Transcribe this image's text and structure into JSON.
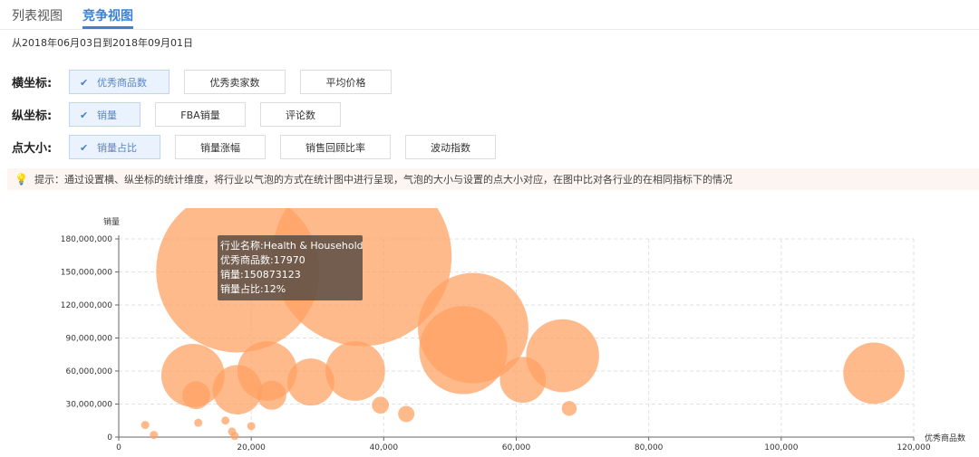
{
  "tabs": [
    {
      "label": "列表视图",
      "active": false
    },
    {
      "label": "竞争视图",
      "active": true
    }
  ],
  "date_range": "从2018年06月03日到2018年09月01日",
  "controls": {
    "x_axis": {
      "label": "横坐标:",
      "options": [
        "优秀商品数",
        "优秀卖家数",
        "平均价格"
      ],
      "selected": 0
    },
    "y_axis": {
      "label": "纵坐标:",
      "options": [
        "销量",
        "FBA销量",
        "评论数"
      ],
      "selected": 0
    },
    "point_size": {
      "label": "点大小:",
      "options": [
        "销量占比",
        "销量涨幅",
        "销售回顾比率",
        "波动指数"
      ],
      "selected": 0
    }
  },
  "tip": {
    "icon": "lightbulb-icon",
    "text": "提示：通过设置横、纵坐标的统计维度，将行业以气泡的方式在统计图中进行呈现，气泡的大小与设置的点大小对应，在图中比对各行业的在相同指标下的情况"
  },
  "tooltip": {
    "line1": "行业名称:Health & Household",
    "line2": "优秀商品数:17970",
    "line3": "销量:150873123",
    "line4": "销量占比:12%"
  },
  "colors": {
    "accent": "#3b82d6",
    "bubble": "#ffa060"
  },
  "chart_data": {
    "type": "scatter",
    "variant": "bubble",
    "xlabel": "优秀商品数",
    "ylabel": "销量",
    "xlim": [
      0,
      120000
    ],
    "ylim": [
      0,
      180000000
    ],
    "xticks": [
      0,
      20000,
      40000,
      60000,
      80000,
      100000,
      120000
    ],
    "yticks": [
      0,
      30000000,
      60000000,
      90000000,
      120000000,
      150000000,
      180000000
    ],
    "grid": true,
    "size_metric": "销量占比",
    "points": [
      {
        "x": 17970,
        "y": 150873123,
        "size": 12
      },
      {
        "x": 36700,
        "y": 164000000,
        "size": 14.5
      },
      {
        "x": 53500,
        "y": 99000000,
        "size": 5.5
      },
      {
        "x": 52000,
        "y": 79000000,
        "size": 3.5
      },
      {
        "x": 67000,
        "y": 74000000,
        "size": 2.4
      },
      {
        "x": 114000,
        "y": 58000000,
        "size": 1.7
      },
      {
        "x": 11200,
        "y": 56000000,
        "size": 1.8
      },
      {
        "x": 22400,
        "y": 60000000,
        "size": 1.6
      },
      {
        "x": 35700,
        "y": 60000000,
        "size": 1.6
      },
      {
        "x": 29000,
        "y": 50000000,
        "size": 1.0
      },
      {
        "x": 17900,
        "y": 43000000,
        "size": 1.1
      },
      {
        "x": 61000,
        "y": 52000000,
        "size": 0.95
      },
      {
        "x": 11700,
        "y": 38000000,
        "size": 0.35
      },
      {
        "x": 23100,
        "y": 38000000,
        "size": 0.38
      },
      {
        "x": 39500,
        "y": 29000000,
        "size": 0.13
      },
      {
        "x": 43400,
        "y": 21000000,
        "size": 0.12
      },
      {
        "x": 68000,
        "y": 26000000,
        "size": 0.1
      },
      {
        "x": 4000,
        "y": 11000000,
        "size": 0.03
      },
      {
        "x": 12000,
        "y": 13000000,
        "size": 0.03
      },
      {
        "x": 16100,
        "y": 15000000,
        "size": 0.03
      },
      {
        "x": 20000,
        "y": 10000000,
        "size": 0.03
      },
      {
        "x": 17100,
        "y": 5000000,
        "size": 0.03
      },
      {
        "x": 5300,
        "y": 2000000,
        "size": 0.03
      },
      {
        "x": 17500,
        "y": 1000000,
        "size": 0.03
      }
    ]
  }
}
